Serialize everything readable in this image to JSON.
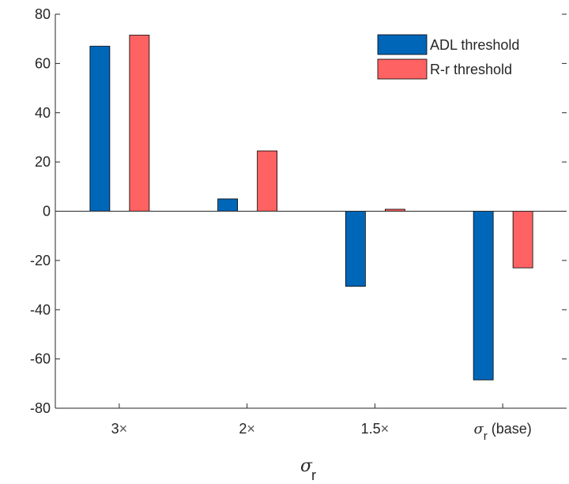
{
  "chart_data": {
    "type": "bar",
    "categories": [
      "3×",
      "2×",
      "1.5×",
      "σr (base)"
    ],
    "category_labels": [
      {
        "main": "3",
        "suffix": "×"
      },
      {
        "main": "2",
        "suffix": "×"
      },
      {
        "main": "1.5",
        "suffix": "×"
      },
      {
        "sigma": "σ",
        "sub": "r",
        "rest": " (base)"
      }
    ],
    "series": [
      {
        "name": "ADL threshold",
        "values": [
          67,
          5,
          -30.5,
          -68.5
        ],
        "color": "#0066b8"
      },
      {
        "name": "R-r threshold",
        "values": [
          71.5,
          24.5,
          0.8,
          -23
        ],
        "color": "#ff6262"
      }
    ],
    "xlabel": {
      "symbol": "σ",
      "sub": "r"
    },
    "ylabel": "",
    "ylim": [
      -80,
      80
    ],
    "yticks": [
      -80,
      -60,
      -40,
      -20,
      0,
      20,
      40,
      60,
      80
    ],
    "grid": false,
    "legend_position": "top-right"
  }
}
